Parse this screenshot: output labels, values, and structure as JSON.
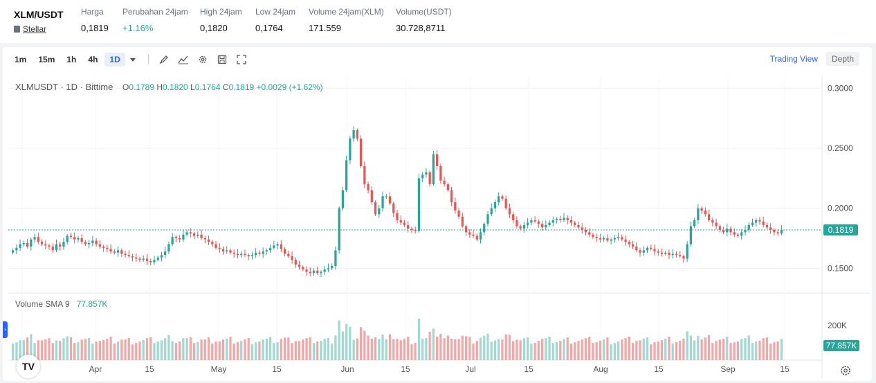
{
  "ticker": {
    "pair": "XLM/USDT",
    "sub_label": "Stellar",
    "cols": [
      {
        "label": "Harga",
        "value": "0,1819",
        "up": false
      },
      {
        "label": "Perubahan 24jam",
        "value": "+1.16%",
        "up": true
      },
      {
        "label": "High 24jam",
        "value": "0,1820",
        "up": false
      },
      {
        "label": "Low 24jam",
        "value": "0,1764",
        "up": false
      },
      {
        "label": "Volume 24jam(XLM)",
        "value": "171.559",
        "up": false
      },
      {
        "label": "Volume(USDT)",
        "value": "30.728,8711",
        "up": false
      }
    ]
  },
  "toolbar": {
    "timeframes": [
      "1m",
      "15m",
      "1h",
      "4h",
      "1D"
    ],
    "active_timeframe": "1D",
    "tools": [
      "brush-icon",
      "indicator-icon",
      "gear-icon",
      "save-icon",
      "fullscreen-icon"
    ],
    "views": [
      "Trading View",
      "Depth"
    ],
    "active_view": "Trading View"
  },
  "legend": {
    "symbol": "XLMUSDT · 1D · Bittime",
    "o_label": "O",
    "o": "0.1789",
    "h_label": "H",
    "h": "0.1820",
    "l_label": "L",
    "l": "0.1764",
    "c_label": "C",
    "c": "0.1819",
    "change": "+0.0029 (+1.62%)"
  },
  "volume_legend": {
    "name": "Volume SMA 9",
    "value": "77.857K"
  },
  "logo_text": "TV",
  "colors": {
    "up": "#26a69a",
    "down": "#ef5350",
    "vol_up": "#9fd9d1",
    "vol_down": "#f4a6a6",
    "accent": "#2962ff"
  },
  "chart_data": {
    "type": "candlestick",
    "symbol": "XLMUSDT",
    "interval": "1D",
    "x_tick_labels": [
      "15",
      "Apr",
      "15",
      "May",
      "15",
      "Jun",
      "15",
      "Jul",
      "15",
      "Aug",
      "15",
      "Sep",
      "15"
    ],
    "y_tick_labels": [
      "0.3000",
      "0.2500",
      "0.2000",
      "0.1500"
    ],
    "ylim": [
      0.13,
      0.31
    ],
    "last_price": 0.1819,
    "last_price_label": "0.1819",
    "volume_tick_label": "200K",
    "volume_last_label": "77.857K",
    "close_series": [
      0.165,
      0.167,
      0.17,
      0.171,
      0.168,
      0.174,
      0.176,
      0.172,
      0.17,
      0.169,
      0.168,
      0.165,
      0.17,
      0.168,
      0.172,
      0.177,
      0.176,
      0.174,
      0.175,
      0.172,
      0.17,
      0.171,
      0.173,
      0.17,
      0.168,
      0.167,
      0.166,
      0.164,
      0.163,
      0.165,
      0.162,
      0.161,
      0.16,
      0.159,
      0.158,
      0.157,
      0.158,
      0.156,
      0.155,
      0.157,
      0.159,
      0.161,
      0.164,
      0.17,
      0.176,
      0.175,
      0.174,
      0.178,
      0.18,
      0.179,
      0.177,
      0.178,
      0.175,
      0.174,
      0.172,
      0.17,
      0.167,
      0.166,
      0.164,
      0.165,
      0.163,
      0.162,
      0.161,
      0.162,
      0.161,
      0.16,
      0.161,
      0.163,
      0.162,
      0.164,
      0.165,
      0.167,
      0.169,
      0.17,
      0.166,
      0.162,
      0.16,
      0.157,
      0.153,
      0.151,
      0.149,
      0.147,
      0.146,
      0.148,
      0.146,
      0.147,
      0.149,
      0.15,
      0.152,
      0.165,
      0.2,
      0.215,
      0.24,
      0.258,
      0.265,
      0.258,
      0.235,
      0.22,
      0.215,
      0.205,
      0.195,
      0.2,
      0.21,
      0.21,
      0.204,
      0.196,
      0.19,
      0.188,
      0.186,
      0.183,
      0.182,
      0.181,
      0.225,
      0.228,
      0.23,
      0.22,
      0.245,
      0.235,
      0.223,
      0.22,
      0.215,
      0.205,
      0.198,
      0.193,
      0.185,
      0.18,
      0.178,
      0.177,
      0.174,
      0.18,
      0.187,
      0.195,
      0.2,
      0.205,
      0.21,
      0.208,
      0.2,
      0.195,
      0.19,
      0.185,
      0.183,
      0.186,
      0.188,
      0.19,
      0.189,
      0.187,
      0.184,
      0.186,
      0.188,
      0.19,
      0.191,
      0.19,
      0.192,
      0.19,
      0.188,
      0.186,
      0.184,
      0.182,
      0.18,
      0.178,
      0.176,
      0.175,
      0.174,
      0.175,
      0.173,
      0.174,
      0.175,
      0.176,
      0.174,
      0.172,
      0.17,
      0.168,
      0.165,
      0.163,
      0.165,
      0.167,
      0.166,
      0.164,
      0.163,
      0.162,
      0.163,
      0.161,
      0.162,
      0.161,
      0.16,
      0.158,
      0.17,
      0.185,
      0.19,
      0.2,
      0.198,
      0.195,
      0.19,
      0.188,
      0.185,
      0.182,
      0.18,
      0.183,
      0.18,
      0.178,
      0.177,
      0.18,
      0.182,
      0.186,
      0.188,
      0.19,
      0.189,
      0.186,
      0.184,
      0.182,
      0.18,
      0.179,
      0.182
    ]
  }
}
